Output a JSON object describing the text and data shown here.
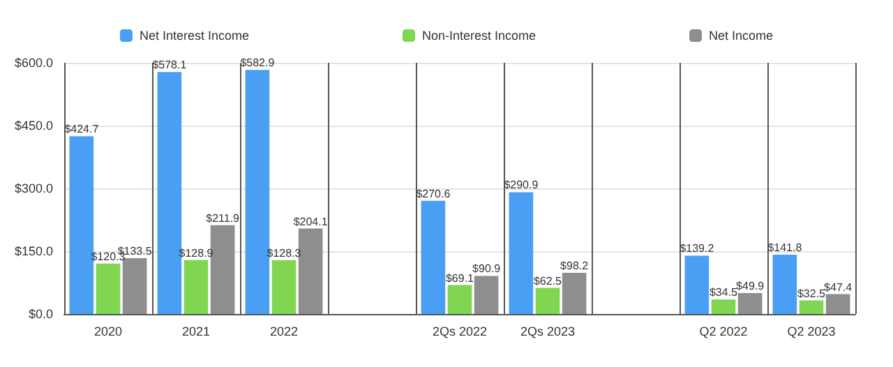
{
  "chart_data": {
    "type": "bar",
    "categories": [
      "2020",
      "2021",
      "2022",
      null,
      "2Qs 2022",
      "2Qs 2023",
      null,
      "Q2 2022",
      "Q2 2023"
    ],
    "series": [
      {
        "name": "Net Interest Income",
        "color": "#4a9ff5",
        "values": [
          424.7,
          578.1,
          582.9,
          null,
          270.6,
          290.9,
          null,
          139.2,
          141.8
        ],
        "value_labels": [
          "$424.7",
          "$578.1",
          "$582.9",
          null,
          "$270.6",
          "$290.9",
          null,
          "$139.2",
          "$141.8"
        ]
      },
      {
        "name": "Non-Interest Income",
        "color": "#80d651",
        "values": [
          120.3,
          128.9,
          128.3,
          null,
          69.1,
          62.5,
          null,
          34.5,
          32.5
        ],
        "value_labels": [
          "$120.3",
          "$128.9",
          "$128.3",
          null,
          "$69.1",
          "$62.5",
          null,
          "$34.5",
          "$32.5"
        ]
      },
      {
        "name": "Net Income",
        "color": "#8e8e8e",
        "values": [
          133.5,
          211.9,
          204.1,
          null,
          90.9,
          98.2,
          null,
          49.9,
          47.4
        ],
        "value_labels": [
          "$133.5",
          "$211.9",
          "$204.1",
          null,
          "$90.9",
          "$98.2",
          null,
          "$49.9",
          "$47.4"
        ]
      }
    ],
    "ylim": [
      0,
      600
    ],
    "yticks": [
      {
        "value": 0,
        "label": "$0.0"
      },
      {
        "value": 150,
        "label": "$150.0"
      },
      {
        "value": 300,
        "label": "$300.0"
      },
      {
        "value": 450,
        "label": "$450.0"
      },
      {
        "value": 600,
        "label": "$600.0"
      }
    ],
    "grid": true,
    "legend": "top"
  }
}
